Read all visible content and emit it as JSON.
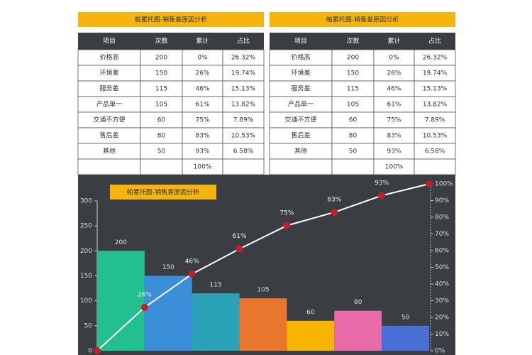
{
  "tables": [
    {
      "title": "帕累托图-销售差原因分析",
      "header": [
        "项目",
        "次数",
        "累计",
        "占比"
      ],
      "rows": [
        [
          "价格高",
          "200",
          "0%",
          "26.32%"
        ],
        [
          "环境差",
          "150",
          "26%",
          "19.74%"
        ],
        [
          "服务差",
          "115",
          "46%",
          "15.13%"
        ],
        [
          "产品单一",
          "105",
          "61%",
          "13.82%"
        ],
        [
          "交通不方便",
          "60",
          "75%",
          "7.89%"
        ],
        [
          "售后差",
          "80",
          "83%",
          "10.53%"
        ],
        [
          "其他",
          "50",
          "93%",
          "6.58%"
        ],
        [
          null,
          null,
          "100%",
          null
        ]
      ]
    },
    {
      "title": "帕累托图-销售差原因分析",
      "header": [
        "项目",
        "次数",
        "累计",
        "占比"
      ],
      "rows": [
        [
          "价格高",
          "200",
          "0%",
          "26.32%"
        ],
        [
          "环境差",
          "150",
          "26%",
          "19.74%"
        ],
        [
          "服务差",
          "115",
          "46%",
          "15.13%"
        ],
        [
          "产品单一",
          "105",
          "61%",
          "13.82%"
        ],
        [
          "交通不方便",
          "60",
          "75%",
          "7.89%"
        ],
        [
          "售后差",
          "80",
          "83%",
          "10.53%"
        ],
        [
          "其他",
          "50",
          "93%",
          "6.58%"
        ],
        [
          null,
          null,
          "100%",
          null
        ]
      ]
    }
  ],
  "chart_data": {
    "type": "pareto",
    "title": "帕累托图-销售差原因分析",
    "values": [
      200,
      150,
      115,
      105,
      60,
      80,
      50
    ],
    "colors": [
      "#22c08f",
      "#3b8fd9",
      "#2aa3b8",
      "#e8762c",
      "#f7b500",
      "#e96aa8",
      "#4a6fd6"
    ],
    "ylim": [
      0,
      300
    ],
    "yticks": [
      0,
      50,
      100,
      150,
      200,
      250,
      300
    ],
    "line": {
      "axis": "y2",
      "color": "#ffffff",
      "marker_color": "#c0202a",
      "values": [
        0,
        26,
        46,
        61,
        75,
        83,
        93,
        100
      ],
      "value_labels": [
        null,
        "26%",
        "46%",
        "61%",
        "75%",
        "83%",
        "93%",
        null
      ]
    },
    "y2lim": [
      0,
      100
    ],
    "y2ticks": [
      {
        "value": 0,
        "label": "0%"
      },
      {
        "value": 10,
        "label": "10%"
      },
      {
        "value": 20,
        "label": "20%"
      },
      {
        "value": 30,
        "label": "30%"
      },
      {
        "value": 40,
        "label": "40%"
      },
      {
        "value": 50,
        "label": "50%"
      },
      {
        "value": 60,
        "label": "60%"
      },
      {
        "value": 70,
        "label": "70%"
      },
      {
        "value": 80,
        "label": "80%"
      },
      {
        "value": 90,
        "label": "90%"
      },
      {
        "value": 100,
        "label": "100%"
      }
    ]
  }
}
